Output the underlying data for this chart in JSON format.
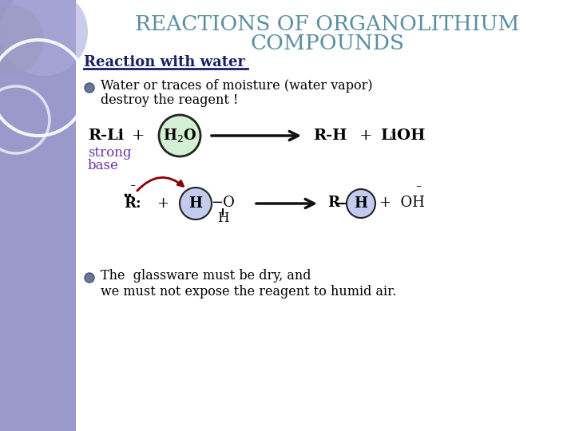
{
  "title_line1": "REACTIONS OF ORGANOLITHIUM",
  "title_line2": "COMPOUNDS",
  "title_color": "#5a8fa0",
  "subtitle": "Reaction with water",
  "subtitle_color": "#1a2060",
  "bullet1_line1": "Water or traces of moisture (water vapor)",
  "bullet1_line2": "destroy the reagent !",
  "bullet2_line1": "The  glassware must be dry, and",
  "bullet2_line2": "we must not expose the reagent to humid air.",
  "strong_base_color": "#6633aa",
  "left_panel_color": "#8888cc",
  "background_color": "#ffffff",
  "h2o_circle_fill": "#d4f0d4",
  "h2o_circle_edge": "#222222",
  "h_circle_fill": "#c4ccee",
  "h_circle_edge": "#222222",
  "arrow_color": "#111111",
  "curved_arrow_color": "#880000",
  "bullet_color": "#667799",
  "title_bg_color": "#ffffff"
}
